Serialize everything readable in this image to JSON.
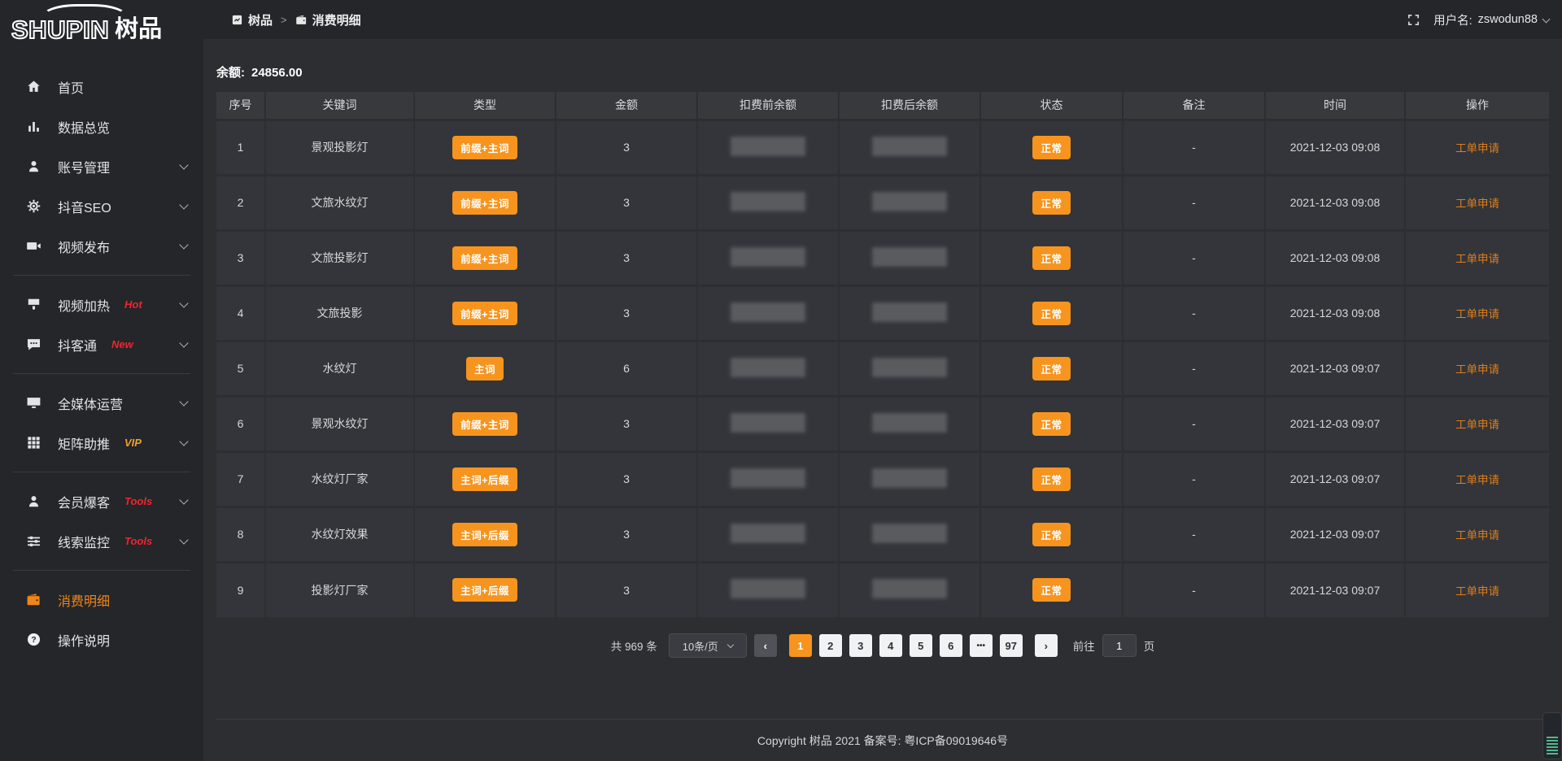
{
  "brand": {
    "logo_en": "SHUPIN",
    "logo_cn": "树品"
  },
  "topbar": {
    "breadcrumb": [
      {
        "icon": "app",
        "label": "树品"
      },
      {
        "icon": "wallet",
        "label": "消费明细"
      }
    ],
    "separator": ">",
    "username_label": "用户名:",
    "username": "zswodun88"
  },
  "sidebar": {
    "items": [
      {
        "icon": "home",
        "label": "首页"
      },
      {
        "icon": "chart",
        "label": "数据总览"
      },
      {
        "icon": "user",
        "label": "账号管理",
        "expandable": true
      },
      {
        "icon": "gear",
        "label": "抖音SEO",
        "expandable": true
      },
      {
        "icon": "video",
        "label": "视频发布",
        "expandable": true
      },
      {
        "divider": true
      },
      {
        "icon": "heat",
        "label": "视频加热",
        "tag": "Hot",
        "tag_color": "#f5222d",
        "expandable": true
      },
      {
        "icon": "chat",
        "label": "抖客通",
        "tag": "New",
        "tag_color": "#f5222d",
        "expandable": true
      },
      {
        "divider": true
      },
      {
        "icon": "monitor",
        "label": "全媒体运营",
        "expandable": true
      },
      {
        "icon": "grid",
        "label": "矩阵助推",
        "tag": "VIP",
        "tag_color": "#efa12d",
        "expandable": true
      },
      {
        "divider": true
      },
      {
        "icon": "user",
        "label": "会员爆客",
        "tag": "Tools",
        "tag_color": "#f5222d",
        "expandable": true
      },
      {
        "icon": "sliders",
        "label": "线索监控",
        "tag": "Tools",
        "tag_color": "#f5222d",
        "expandable": true
      },
      {
        "divider": true
      },
      {
        "icon": "wallet",
        "label": "消费明细",
        "active": true
      },
      {
        "icon": "question",
        "label": "操作说明"
      }
    ]
  },
  "main": {
    "balance_label": "余额:",
    "balance_value": "24856.00",
    "table": {
      "columns": [
        "序号",
        "关键词",
        "类型",
        "金额",
        "扣费前余额",
        "扣费后余额",
        "状态",
        "备注",
        "时间",
        "操作"
      ],
      "rows": [
        {
          "index": "1",
          "keyword": "景观投影灯",
          "type": "前缀+主词",
          "amount": "3",
          "status": "正常",
          "remark": "-",
          "time": "2021-12-03 09:08",
          "action": "工单申请"
        },
        {
          "index": "2",
          "keyword": "文旅水纹灯",
          "type": "前缀+主词",
          "amount": "3",
          "status": "正常",
          "remark": "-",
          "time": "2021-12-03 09:08",
          "action": "工单申请"
        },
        {
          "index": "3",
          "keyword": "文旅投影灯",
          "type": "前缀+主词",
          "amount": "3",
          "status": "正常",
          "remark": "-",
          "time": "2021-12-03 09:08",
          "action": "工单申请"
        },
        {
          "index": "4",
          "keyword": "文旅投影",
          "type": "前缀+主词",
          "amount": "3",
          "status": "正常",
          "remark": "-",
          "time": "2021-12-03 09:08",
          "action": "工单申请"
        },
        {
          "index": "5",
          "keyword": "水纹灯",
          "type": "主词",
          "amount": "6",
          "status": "正常",
          "remark": "-",
          "time": "2021-12-03 09:07",
          "action": "工单申请"
        },
        {
          "index": "6",
          "keyword": "景观水纹灯",
          "type": "前缀+主词",
          "amount": "3",
          "status": "正常",
          "remark": "-",
          "time": "2021-12-03 09:07",
          "action": "工单申请"
        },
        {
          "index": "7",
          "keyword": "水纹灯厂家",
          "type": "主词+后缀",
          "amount": "3",
          "status": "正常",
          "remark": "-",
          "time": "2021-12-03 09:07",
          "action": "工单申请"
        },
        {
          "index": "8",
          "keyword": "水纹灯效果",
          "type": "主词+后缀",
          "amount": "3",
          "status": "正常",
          "remark": "-",
          "time": "2021-12-03 09:07",
          "action": "工单申请"
        },
        {
          "index": "9",
          "keyword": "投影灯厂家",
          "type": "主词+后缀",
          "amount": "3",
          "status": "正常",
          "remark": "-",
          "time": "2021-12-03 09:07",
          "action": "工单申请"
        }
      ]
    },
    "pagination": {
      "total_label": "共 969 条",
      "page_size": "10条/页",
      "prev_label": "‹",
      "next_label": "›",
      "pages": [
        "1",
        "2",
        "3",
        "4",
        "5",
        "6",
        "•••",
        "97"
      ],
      "active_page": "1",
      "goto_label": "前往",
      "goto_value": "1",
      "goto_suffix": "页"
    }
  },
  "footer": {
    "copyright": "Copyright 树品 2021 备案号: 粤ICP备09019646号"
  },
  "colors": {
    "accent": "#f7941e",
    "link_orange": "#dd7f1b",
    "active_sidebar": "#f08519",
    "hot_red": "#f5222d",
    "vip_gold": "#efa12d"
  }
}
